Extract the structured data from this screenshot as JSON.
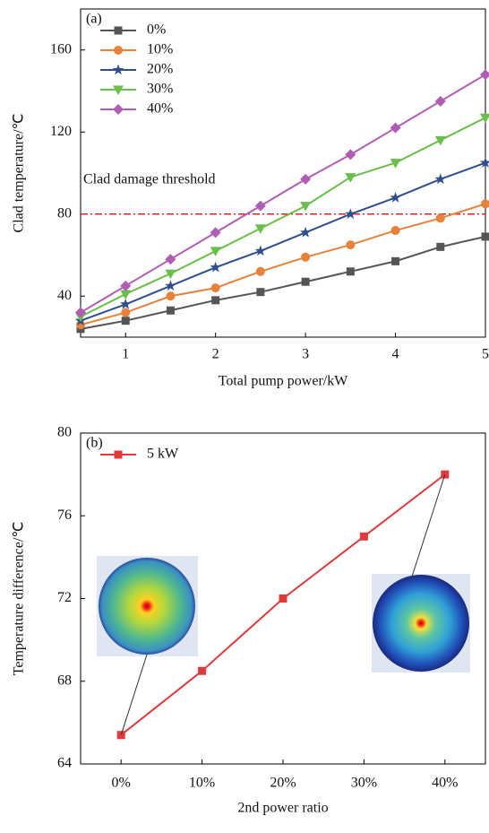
{
  "chart_data": [
    {
      "type": "line",
      "panel_label": "(a)",
      "x_label": "Total pump power/kW",
      "y_label": "Clad temperature/℃",
      "x": [
        0.5,
        1,
        1.5,
        2,
        2.5,
        3,
        3.5,
        4,
        4.5,
        5
      ],
      "xlim": [
        0.5,
        5
      ],
      "xticks": [
        1,
        2,
        3,
        4,
        5
      ],
      "ylim": [
        20,
        180
      ],
      "yticks": [
        40,
        80,
        120,
        160
      ],
      "series": [
        {
          "name": "0%",
          "color": "#555555",
          "marker": "square",
          "values": [
            24,
            28,
            33,
            38,
            42,
            47,
            52,
            57,
            64,
            69
          ]
        },
        {
          "name": "10%",
          "color": "#e8823a",
          "marker": "circle",
          "values": [
            26,
            32,
            40,
            44,
            52,
            59,
            65,
            72,
            78,
            85
          ]
        },
        {
          "name": "20%",
          "color": "#2e4e8f",
          "marker": "star",
          "values": [
            28,
            36,
            45,
            54,
            62,
            71,
            80,
            88,
            97,
            105
          ]
        },
        {
          "name": "30%",
          "color": "#6abf4b",
          "marker": "triangle-down",
          "values": [
            30,
            41,
            51,
            62,
            73,
            84,
            98,
            105,
            116,
            127
          ]
        },
        {
          "name": "40%",
          "color": "#b05cb5",
          "marker": "diamond",
          "values": [
            32,
            45,
            58,
            71,
            84,
            97,
            109,
            122,
            135,
            148
          ]
        }
      ],
      "hline": {
        "value": 80,
        "color": "#d62828",
        "label": "Clad damage threshold"
      }
    },
    {
      "type": "line",
      "panel_label": "(b)",
      "x_label": "2nd power ratio",
      "y_label": "Temperature difference/℃",
      "categories": [
        "0%",
        "10%",
        "20%",
        "30%",
        "40%"
      ],
      "ylim": [
        64,
        80
      ],
      "yticks": [
        64,
        68,
        72,
        76,
        80
      ],
      "series": [
        {
          "name": "5 kW",
          "color": "#e03a3a",
          "marker": "square",
          "values": [
            65.4,
            68.5,
            72,
            75,
            78
          ]
        }
      ]
    }
  ]
}
